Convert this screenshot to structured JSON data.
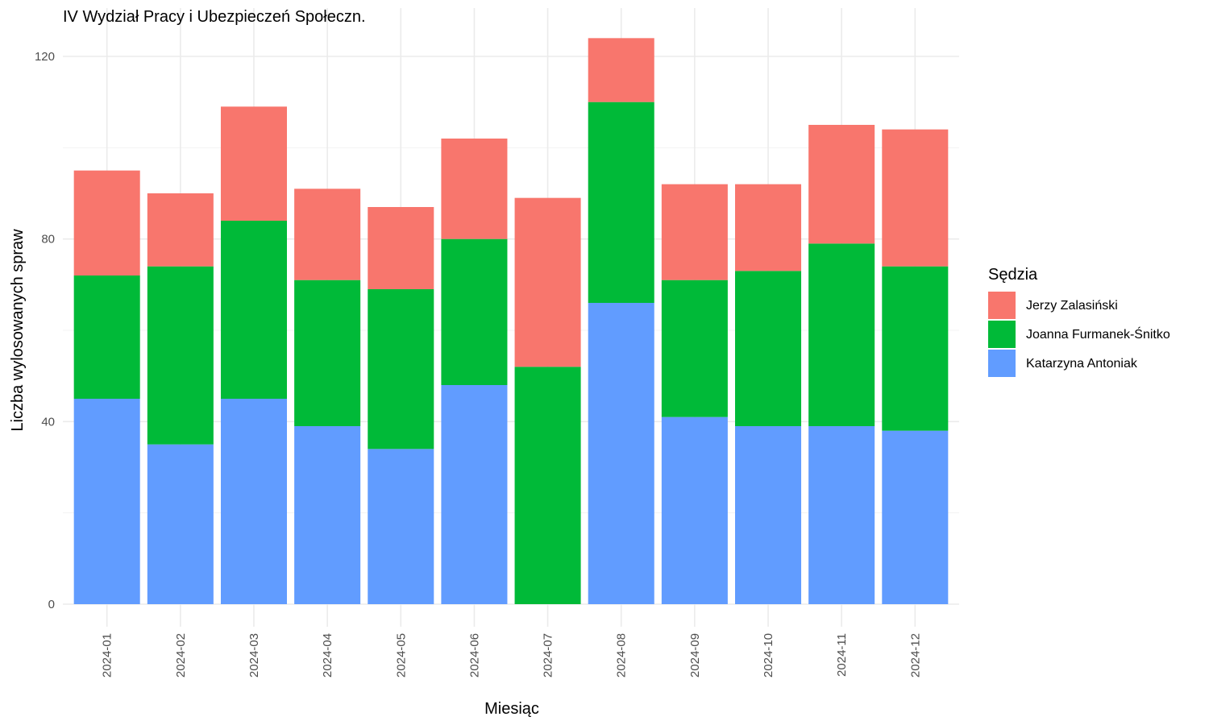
{
  "chart_data": {
    "type": "bar",
    "stacked": true,
    "title": "IV Wydział Pracy i Ubezpieczeń Społeczn.",
    "xlabel": "Miesiąc",
    "ylabel": "Liczba wylosowanych spraw",
    "ylim": [
      0,
      126
    ],
    "yticks": [
      0,
      40,
      80,
      120
    ],
    "grid": true,
    "legend": {
      "title": "Sędzia",
      "position": "right"
    },
    "categories": [
      "2024-01",
      "2024-02",
      "2024-03",
      "2024-04",
      "2024-05",
      "2024-06",
      "2024-07",
      "2024-08",
      "2024-09",
      "2024-10",
      "2024-11",
      "2024-12"
    ],
    "series": [
      {
        "name": "Katarzyna Antoniak",
        "color": "#619CFF",
        "values": [
          45,
          35,
          45,
          39,
          34,
          48,
          0,
          66,
          41,
          39,
          39,
          38
        ]
      },
      {
        "name": "Joanna Furmanek-Śnitko",
        "color": "#00BA38",
        "values": [
          27,
          39,
          39,
          32,
          35,
          32,
          52,
          44,
          30,
          34,
          40,
          36
        ]
      },
      {
        "name": "Jerzy Zalasiński",
        "color": "#F8766D",
        "values": [
          23,
          16,
          25,
          20,
          18,
          22,
          37,
          14,
          21,
          19,
          26,
          30
        ]
      }
    ],
    "legend_order": [
      "Jerzy Zalasiński",
      "Joanna Furmanek-Śnitko",
      "Katarzyna Antoniak"
    ]
  }
}
